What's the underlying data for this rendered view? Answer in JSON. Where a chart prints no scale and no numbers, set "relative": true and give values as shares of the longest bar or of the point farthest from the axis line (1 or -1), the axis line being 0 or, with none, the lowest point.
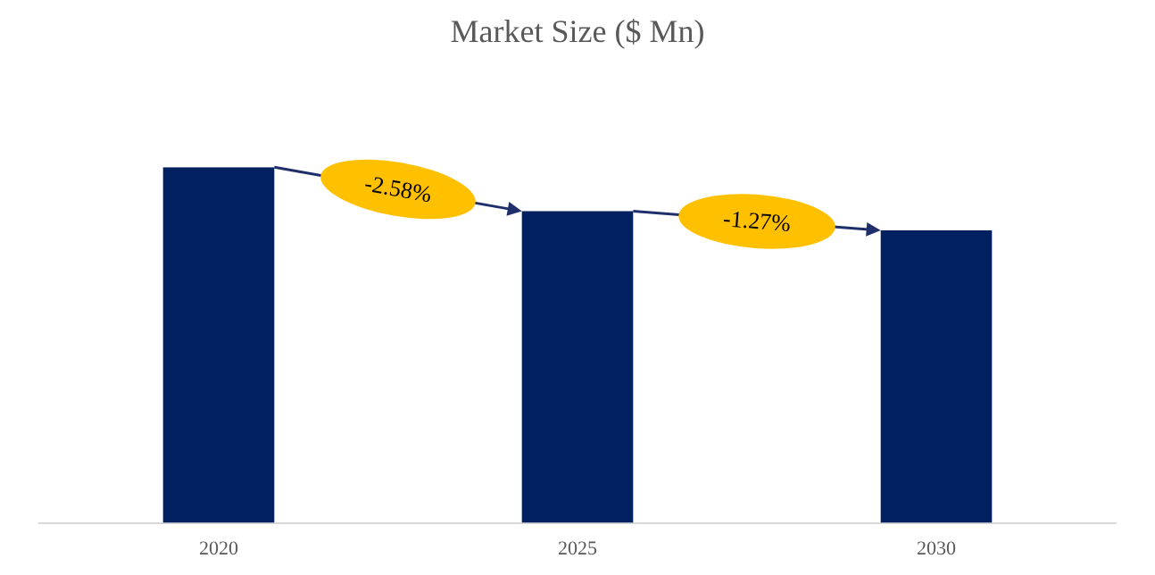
{
  "chart_data": {
    "type": "bar",
    "title": "Market Size ($ Mn)",
    "relative": true,
    "categories": [
      "2020",
      "2025",
      "2030"
    ],
    "values": [
      1,
      0.876,
      0.822
    ],
    "color": "#002060",
    "annotations": [
      "-2.58%",
      "-1.27%"
    ],
    "grid": false,
    "legend": false
  }
}
